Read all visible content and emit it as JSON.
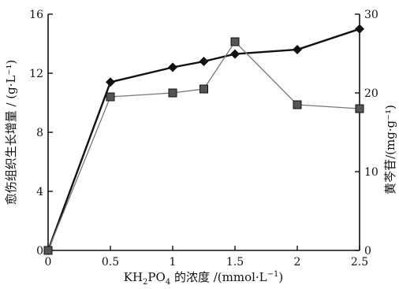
{
  "chart_data": {
    "type": "line",
    "title": "",
    "xlabel": {
      "prefix": "KH",
      "sub1": "2",
      "mid": "PO",
      "sub2": "4",
      "suffix": " 的浓度 /(mmol·L",
      "sup": "−1",
      "close": ")"
    },
    "ylabel_left": "愈伤组织生长增量 / (g·L⁻¹)",
    "ylabel_right": "黄芩苷/(mg·g⁻¹)",
    "xlim": [
      0,
      2.5
    ],
    "ylim_left": [
      0,
      16
    ],
    "ylim_right": [
      0,
      30
    ],
    "x_ticks": [
      "0",
      "0.5",
      "1",
      "1.5",
      "2",
      "2.5"
    ],
    "y_left_ticks": [
      "0",
      "4",
      "8",
      "12",
      "16"
    ],
    "y_right_ticks": [
      "0",
      "10",
      "20",
      "30"
    ],
    "series": [
      {
        "axis": "left",
        "marker": "diamond",
        "x": [
          0,
          0.5,
          1.0,
          1.25,
          1.5,
          2.0,
          2.5
        ],
        "values": [
          0,
          11.4,
          12.4,
          12.8,
          13.3,
          13.6,
          15.0
        ]
      },
      {
        "axis": "right",
        "marker": "square",
        "x": [
          0,
          0.5,
          1.0,
          1.25,
          1.5,
          2.0,
          2.5
        ],
        "values": [
          0,
          19.5,
          20.0,
          20.5,
          26.5,
          18.5,
          18.0
        ]
      }
    ]
  }
}
